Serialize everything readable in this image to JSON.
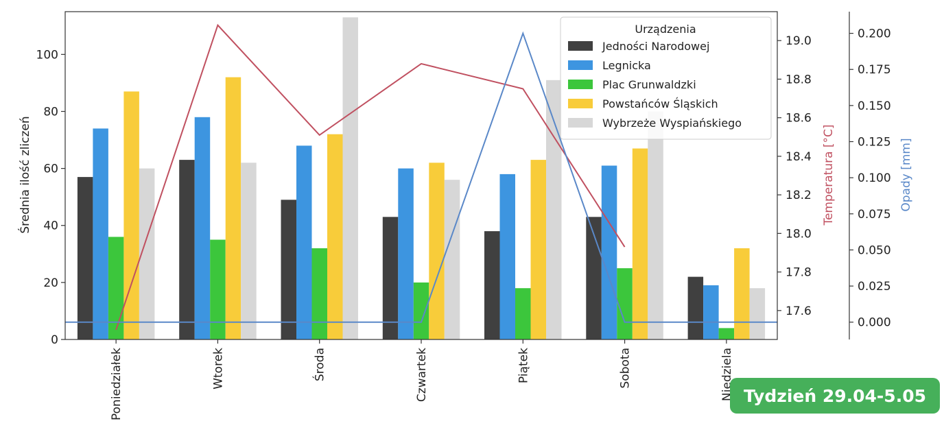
{
  "badge": {
    "text": "Tydzień 29.04-5.05",
    "color": "#46b05a"
  },
  "chart_data": {
    "type": "bar",
    "title": "",
    "categories": [
      "Poniedziałek",
      "Wtorek",
      "Środa",
      "Czwartek",
      "Piątek",
      "Sobota",
      "Niedziela"
    ],
    "ylabel": "Średnia ilość zliczeń",
    "ylim": [
      0,
      115
    ],
    "yticks": [
      0,
      20,
      40,
      60,
      80,
      100
    ],
    "series": [
      {
        "name": "Jedności Narodowej",
        "color": "#404040",
        "values": [
          57,
          63,
          49,
          43,
          38,
          43,
          22
        ]
      },
      {
        "name": "Legnicka",
        "color": "#3d95e0",
        "values": [
          74,
          78,
          68,
          60,
          58,
          61,
          19
        ]
      },
      {
        "name": "Plac Grunwaldzki",
        "color": "#3cc63c",
        "values": [
          36,
          35,
          32,
          20,
          18,
          25,
          4
        ]
      },
      {
        "name": "Powstańców Śląskich",
        "color": "#f8cc3a",
        "values": [
          87,
          92,
          72,
          62,
          63,
          67,
          32
        ]
      },
      {
        "name": "Wybrzeże Wyspiańskiego",
        "color": "#d7d7d7",
        "values": [
          60,
          62,
          113,
          56,
          91,
          80,
          18
        ]
      }
    ],
    "legend": {
      "title": "Urządzenia",
      "placement": "top-right"
    },
    "temperature": {
      "ylabel": "Temperatura [°C]",
      "color": "#c05060",
      "ylim": [
        17.45,
        19.15
      ],
      "yticks": [
        "17.6",
        "17.8",
        "18.0",
        "18.2",
        "18.4",
        "18.6",
        "18.8",
        "19.0"
      ],
      "values": [
        17.5,
        19.08,
        18.51,
        18.88,
        18.75,
        17.93,
        null
      ]
    },
    "precipitation": {
      "ylabel": "Opady [mm]",
      "color": "#5a88c8",
      "ylim": [
        -0.012,
        0.215
      ],
      "yticks": [
        "0.000",
        "0.025",
        "0.050",
        "0.075",
        "0.100",
        "0.125",
        "0.150",
        "0.175",
        "0.200"
      ],
      "values": [
        0,
        0,
        0,
        0,
        0.2,
        0,
        0
      ]
    }
  }
}
